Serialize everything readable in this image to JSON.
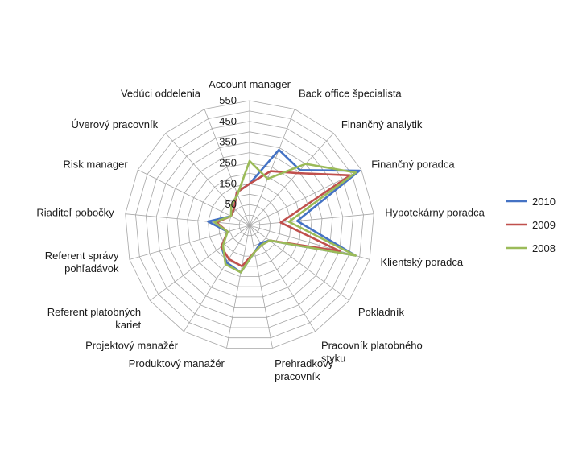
{
  "chart_data": {
    "type": "radar",
    "categories": [
      "Account manager",
      "Back office špecialista",
      "Finančný analytik",
      "Finančný poradca",
      "Hypotekárny poradca",
      "Klientský poradca",
      "Pokladník",
      "Pracovník platobného styku",
      "Prehradkový pracovník",
      "Produktový manažér",
      "Projektový manažér",
      "Referent platobných kariet",
      "Referent správy pohľadávok",
      "Riaditeľ pobočky",
      "Risk manager",
      "Úverový pracovník",
      "Vedúci oddelenia"
    ],
    "ticks": [
      50,
      150,
      250,
      350,
      450,
      550
    ],
    "rlim": [
      -50,
      550
    ],
    "series": [
      {
        "name": "2010",
        "color": "#4472c4",
        "values": [
          150,
          340,
          310,
          540,
          180,
          480,
          70,
          50,
          80,
          180,
          160,
          120,
          60,
          150,
          50,
          60,
          120
        ]
      },
      {
        "name": "2009",
        "color": "#c0504d",
        "values": [
          150,
          230,
          290,
          490,
          100,
          400,
          70,
          60,
          80,
          150,
          140,
          120,
          60,
          110,
          50,
          60,
          120
        ]
      },
      {
        "name": "2008",
        "color": "#9bbb59",
        "values": [
          260,
          190,
          350,
          520,
          140,
          480,
          70,
          60,
          80,
          180,
          170,
          110,
          60,
          120,
          50,
          80,
          110
        ]
      }
    ],
    "legend": "right"
  }
}
